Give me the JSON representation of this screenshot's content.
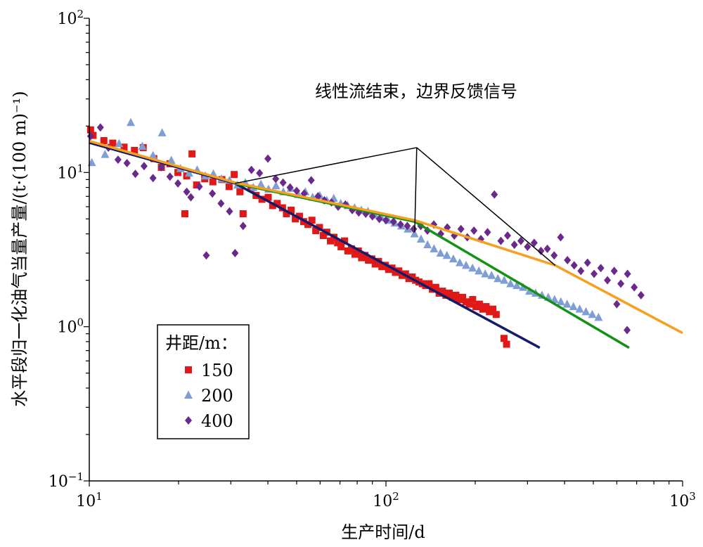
{
  "chart_data": {
    "type": "scatter",
    "scale": {
      "x": "log",
      "y": "log"
    },
    "xlim": [
      10,
      1000
    ],
    "ylim": [
      0.1,
      100
    ],
    "xlabel": "生产时间/d",
    "ylabel": "水平段归一化油气当量产量/(t·(100 m)⁻¹)",
    "x_ticks": [
      {
        "value": 10,
        "base": "10",
        "exp": "1"
      },
      {
        "value": 100,
        "base": "10",
        "exp": "2"
      },
      {
        "value": 1000,
        "base": "10",
        "exp": "3"
      }
    ],
    "y_ticks": [
      {
        "value": 0.1,
        "base": "10",
        "exp": "−1"
      },
      {
        "value": 1,
        "base": "10",
        "exp": "0"
      },
      {
        "value": 10,
        "base": "10",
        "exp": "1"
      },
      {
        "value": 100,
        "base": "10",
        "exp": "2"
      }
    ],
    "legend": {
      "title": "井距/m：",
      "placement": "lower-left"
    },
    "annotation": {
      "text": "线性流结束，边界反馈信号",
      "apex": [
        127,
        14.5
      ],
      "targets": [
        [
          31,
          8.5
        ],
        [
          125,
          4.1
        ],
        [
          372,
          2.5
        ]
      ]
    },
    "series": [
      {
        "name": "150",
        "marker": "square",
        "color": "#e01818",
        "points": [
          [
            10.1,
            18.9
          ],
          [
            10.3,
            17.4
          ],
          [
            11.2,
            16.1
          ],
          [
            12.0,
            15.5
          ],
          [
            13.1,
            14.6
          ],
          [
            14.2,
            13.9
          ],
          [
            15.2,
            14.5
          ],
          [
            16.5,
            12.3
          ],
          [
            17.5,
            10.8
          ],
          [
            18.7,
            11.4
          ],
          [
            19.9,
            10.0
          ],
          [
            21.3,
            9.5
          ],
          [
            22.2,
            13.2
          ],
          [
            21.0,
            5.4
          ],
          [
            23.0,
            8.3
          ],
          [
            24.5,
            9.1
          ],
          [
            26.1,
            8.7
          ],
          [
            28.0,
            9.0
          ],
          [
            29.6,
            8.1
          ],
          [
            30.8,
            9.7
          ],
          [
            33.0,
            5.4
          ],
          [
            32.2,
            7.5
          ],
          [
            35.1,
            7.9
          ],
          [
            36.5,
            7.1
          ],
          [
            38.2,
            6.7
          ],
          [
            40.1,
            6.9
          ],
          [
            41.5,
            6.1
          ],
          [
            43.0,
            6.3
          ],
          [
            44.8,
            5.9
          ],
          [
            46.2,
            5.4
          ],
          [
            47.9,
            5.7
          ],
          [
            49.5,
            5.0
          ],
          [
            51.1,
            5.2
          ],
          [
            52.8,
            4.8
          ],
          [
            54.6,
            4.6
          ],
          [
            56.3,
            4.9
          ],
          [
            58.0,
            4.2
          ],
          [
            59.7,
            4.4
          ],
          [
            61.5,
            3.9
          ],
          [
            63.2,
            4.1
          ],
          [
            65.0,
            3.6
          ],
          [
            66.8,
            3.8
          ],
          [
            68.7,
            3.5
          ],
          [
            70.6,
            3.3
          ],
          [
            72.5,
            3.6
          ],
          [
            74.4,
            3.1
          ],
          [
            76.5,
            3.2
          ],
          [
            78.6,
            2.95
          ],
          [
            80.7,
            3.1
          ],
          [
            82.8,
            2.8
          ],
          [
            85.0,
            2.9
          ],
          [
            87.3,
            2.7
          ],
          [
            89.6,
            2.75
          ],
          [
            92.0,
            2.55
          ],
          [
            94.4,
            2.65
          ],
          [
            96.9,
            2.45
          ],
          [
            99.5,
            2.5
          ],
          [
            102.1,
            2.35
          ],
          [
            104.8,
            2.4
          ],
          [
            107.6,
            2.25
          ],
          [
            110.5,
            2.3
          ],
          [
            113.4,
            2.15
          ],
          [
            116.4,
            2.2
          ],
          [
            119.5,
            2.05
          ],
          [
            122.6,
            2.1
          ],
          [
            125.9,
            2.0
          ],
          [
            129.2,
            1.95
          ],
          [
            132.6,
            1.9
          ],
          [
            136.1,
            1.85
          ],
          [
            139.7,
            1.9
          ],
          [
            143.4,
            1.75
          ],
          [
            147.2,
            1.8
          ],
          [
            151.1,
            1.65
          ],
          [
            155.1,
            1.7
          ],
          [
            159.2,
            1.6
          ],
          [
            163.4,
            1.65
          ],
          [
            167.7,
            1.55
          ],
          [
            172.1,
            1.6
          ],
          [
            176.6,
            1.5
          ],
          [
            181.3,
            1.55
          ],
          [
            186.1,
            1.45
          ],
          [
            191.0,
            1.4
          ],
          [
            196.0,
            1.5
          ],
          [
            201.2,
            1.35
          ],
          [
            206.5,
            1.4
          ],
          [
            212.0,
            1.3
          ],
          [
            217.6,
            1.35
          ],
          [
            223.3,
            1.25
          ],
          [
            229.2,
            1.3
          ],
          [
            235.3,
            1.2
          ],
          [
            250.0,
            0.84
          ],
          [
            255.0,
            0.77
          ]
        ]
      },
      {
        "name": "200",
        "marker": "triangle",
        "color": "#7f9fd4",
        "points": [
          [
            10.2,
            11.6
          ],
          [
            11.3,
            13.1
          ],
          [
            12.6,
            15.4
          ],
          [
            13.8,
            21.1
          ],
          [
            15.1,
            14.8
          ],
          [
            16.4,
            12.9
          ],
          [
            17.6,
            18.1
          ],
          [
            18.9,
            12.0
          ],
          [
            20.3,
            10.6
          ],
          [
            21.7,
            9.9
          ],
          [
            23.1,
            10.4
          ],
          [
            24.6,
            9.5
          ],
          [
            26.2,
            9.8
          ],
          [
            27.9,
            9.1
          ],
          [
            29.7,
            8.9
          ],
          [
            31.6,
            8.3
          ],
          [
            33.6,
            8.6
          ],
          [
            35.7,
            8.0
          ],
          [
            37.9,
            8.4
          ],
          [
            40.2,
            7.8
          ],
          [
            42.6,
            8.2
          ],
          [
            45.1,
            7.5
          ],
          [
            47.8,
            7.9
          ],
          [
            50.6,
            7.2
          ],
          [
            53.5,
            7.5
          ],
          [
            56.6,
            6.9
          ],
          [
            59.8,
            7.1
          ],
          [
            63.2,
            6.6
          ],
          [
            66.7,
            6.8
          ],
          [
            70.4,
            6.3
          ],
          [
            74.3,
            6.1
          ],
          [
            78.4,
            5.9
          ],
          [
            82.6,
            5.7
          ],
          [
            87.0,
            5.6
          ],
          [
            91.7,
            5.3
          ],
          [
            96.6,
            5.1
          ],
          [
            101.7,
            4.9
          ],
          [
            107.1,
            4.7
          ],
          [
            112.7,
            4.5
          ],
          [
            118.6,
            4.3
          ],
          [
            124.8,
            4.0
          ],
          [
            131.3,
            3.7
          ],
          [
            138.1,
            3.4
          ],
          [
            145.2,
            3.2
          ],
          [
            152.7,
            3.0
          ],
          [
            160.5,
            2.9
          ],
          [
            168.7,
            2.75
          ],
          [
            177.3,
            2.6
          ],
          [
            186.3,
            2.5
          ],
          [
            195.8,
            2.4
          ],
          [
            205.7,
            2.3
          ],
          [
            216.1,
            2.2
          ],
          [
            227.0,
            2.15
          ],
          [
            238.4,
            2.05
          ],
          [
            250.4,
            2.0
          ],
          [
            263.0,
            1.9
          ],
          [
            276.2,
            1.85
          ],
          [
            290.0,
            1.8
          ],
          [
            304.5,
            1.7
          ],
          [
            319.7,
            1.65
          ],
          [
            335.7,
            1.6
          ],
          [
            352.5,
            1.55
          ],
          [
            370.1,
            1.5
          ],
          [
            388.6,
            1.45
          ],
          [
            408.0,
            1.4
          ],
          [
            428.4,
            1.35
          ],
          [
            449.8,
            1.3
          ],
          [
            472.3,
            1.25
          ],
          [
            495.9,
            1.2
          ],
          [
            520.7,
            1.15
          ]
        ]
      },
      {
        "name": "400",
        "marker": "diamond",
        "color": "#6a2a8c",
        "points": [
          [
            10.1,
            17.2
          ],
          [
            10.9,
            19.6
          ],
          [
            11.6,
            14.5
          ],
          [
            12.5,
            12.1
          ],
          [
            13.4,
            11.5
          ],
          [
            14.3,
            9.8
          ],
          [
            15.3,
            11.0
          ],
          [
            16.4,
            9.2
          ],
          [
            17.5,
            10.8
          ],
          [
            18.7,
            9.4
          ],
          [
            19.9,
            8.5
          ],
          [
            21.3,
            7.5
          ],
          [
            22.0,
            6.9
          ],
          [
            23.5,
            8.1
          ],
          [
            24.8,
            2.9
          ],
          [
            26.0,
            7.3
          ],
          [
            27.8,
            6.3
          ],
          [
            29.7,
            5.6
          ],
          [
            31.0,
            3.0
          ],
          [
            33.0,
            4.5
          ],
          [
            35.2,
            10.4
          ],
          [
            37.5,
            9.9
          ],
          [
            40.0,
            12.3
          ],
          [
            42.5,
            9.1
          ],
          [
            45.0,
            8.6
          ],
          [
            47.5,
            8.0
          ],
          [
            50.0,
            7.6
          ],
          [
            53.0,
            7.3
          ],
          [
            56.0,
            8.9
          ],
          [
            59.0,
            7.0
          ],
          [
            62.0,
            6.6
          ],
          [
            65.5,
            6.4
          ],
          [
            69.0,
            6.0
          ],
          [
            73.0,
            6.2
          ],
          [
            77.0,
            5.7
          ],
          [
            81.0,
            5.5
          ],
          [
            85.5,
            5.4
          ],
          [
            90.0,
            5.2
          ],
          [
            95.0,
            5.0
          ],
          [
            100.0,
            4.9
          ],
          [
            106.0,
            4.8
          ],
          [
            112.0,
            4.6
          ],
          [
            118.0,
            4.5
          ],
          [
            124.0,
            4.3
          ],
          [
            131.0,
            4.5
          ],
          [
            138.0,
            4.2
          ],
          [
            145.0,
            4.6
          ],
          [
            153.0,
            4.0
          ],
          [
            161.0,
            4.4
          ],
          [
            170.0,
            3.9
          ],
          [
            179.0,
            4.3
          ],
          [
            188.0,
            3.8
          ],
          [
            198.0,
            4.2
          ],
          [
            209.0,
            3.7
          ],
          [
            220.0,
            4.1
          ],
          [
            232.0,
            7.2
          ],
          [
            244.0,
            3.6
          ],
          [
            257.0,
            3.9
          ],
          [
            271.0,
            3.4
          ],
          [
            285.0,
            3.6
          ],
          [
            300.0,
            3.3
          ],
          [
            316.0,
            3.5
          ],
          [
            333.0,
            3.1
          ],
          [
            350.0,
            3.2
          ],
          [
            369.0,
            2.9
          ],
          [
            388.0,
            3.8
          ],
          [
            409.0,
            2.7
          ],
          [
            431.0,
            2.5
          ],
          [
            454.0,
            2.3
          ],
          [
            478.0,
            2.6
          ],
          [
            503.0,
            2.2
          ],
          [
            530.0,
            2.4
          ],
          [
            558.0,
            2.0
          ],
          [
            588.0,
            2.3
          ],
          [
            619.0,
            1.9
          ],
          [
            652.0,
            2.2
          ],
          [
            687.0,
            1.8
          ],
          [
            724.0,
            1.6
          ],
          [
            600.0,
            1.4
          ],
          [
            650.0,
            0.95
          ]
        ]
      }
    ],
    "fit_lines": [
      {
        "color": "#141b6b",
        "points": [
          [
            10,
            15.6
          ],
          [
            31,
            8.5
          ],
          [
            330,
            0.73
          ]
        ]
      },
      {
        "color": "#149214",
        "points": [
          [
            31,
            8.5
          ],
          [
            125,
            4.8
          ],
          [
            660,
            0.73
          ]
        ]
      },
      {
        "color": "#f5a020",
        "points": [
          [
            10,
            16.0
          ],
          [
            31,
            8.6
          ],
          [
            125,
            4.9
          ],
          [
            372,
            2.5
          ],
          [
            1000,
            0.91
          ]
        ]
      }
    ]
  }
}
